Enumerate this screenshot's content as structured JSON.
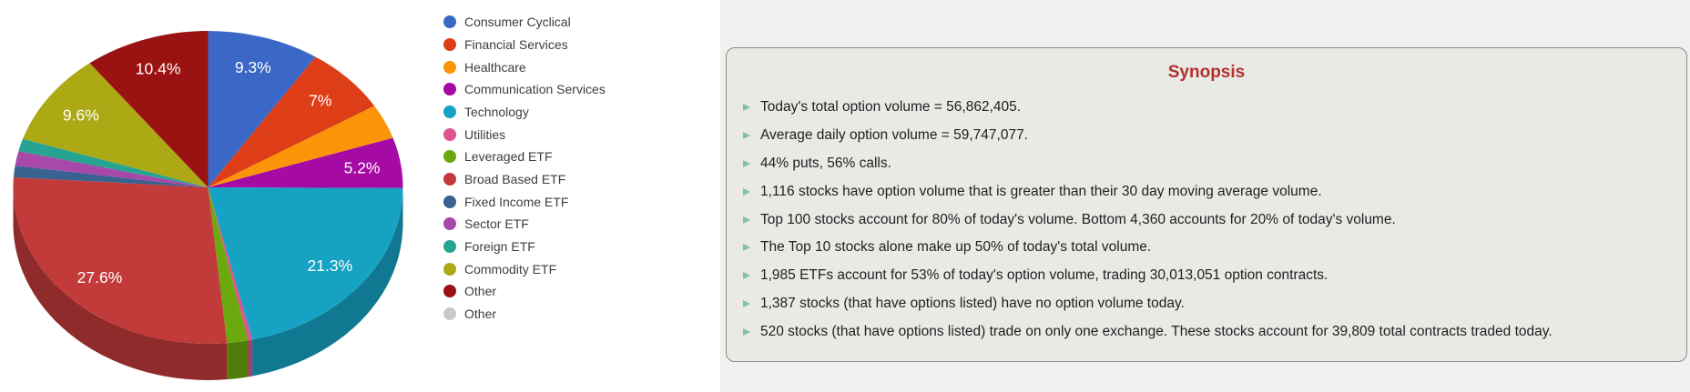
{
  "chart_data": {
    "type": "pie",
    "style": "3d",
    "legend_position": "right",
    "label_color": "#FFFFFF",
    "slices": [
      {
        "name": "Consumer Cyclical",
        "value": 9.3,
        "label": "9.3%",
        "color": "#3B68C6"
      },
      {
        "name": "Financial Services",
        "value": 7.0,
        "label": "7%",
        "color": "#DD3D17"
      },
      {
        "name": "Healthcare",
        "value": 3.6,
        "label": "",
        "color": "#FA9408"
      },
      {
        "name": "Communication Services",
        "value": 5.2,
        "label": "5.2%",
        "color": "#A50AA5"
      },
      {
        "name": "Technology",
        "value": 21.3,
        "label": "21.3%",
        "color": "#16A2C3"
      },
      {
        "name": "Utilities",
        "value": 0.35,
        "label": "",
        "color": "#DE5390"
      },
      {
        "name": "Leveraged ETF",
        "value": 1.75,
        "label": "",
        "color": "#6CA90E"
      },
      {
        "name": "Broad Based ETF",
        "value": 27.6,
        "label": "27.6%",
        "color": "#C23A3A"
      },
      {
        "name": "Fixed Income ETF",
        "value": 1.2,
        "label": "",
        "color": "#3A6290"
      },
      {
        "name": "Sector ETF",
        "value": 1.5,
        "label": "",
        "color": "#A848A8"
      },
      {
        "name": "Foreign ETF",
        "value": 1.3,
        "label": "",
        "color": "#26A491"
      },
      {
        "name": "Commodity ETF",
        "value": 9.6,
        "label": "9.6%",
        "color": "#ACA915"
      },
      {
        "name": "Other",
        "value": 10.4,
        "label": "10.4%",
        "color": "#9A1212"
      },
      {
        "name": "Other",
        "value": 0,
        "label": "",
        "color": "#C9C9C9"
      }
    ]
  },
  "synopsis": {
    "title": "Synopsis",
    "title_color": "#B3312B",
    "bullet_color": "#7CC49E",
    "items": [
      "Today's total option volume = 56,862,405.",
      "Average daily option volume = 59,747,077.",
      "44% puts, 56% calls.",
      "1,116 stocks have option volume that is greater than their 30 day moving average volume.",
      "Top 100 stocks account for 80% of today's volume. Bottom 4,360 accounts for 20% of today's volume.",
      "The Top 10 stocks alone make up 50% of today's total volume.",
      "1,985 ETFs account for 53% of today's option volume, trading 30,013,051 option contracts.",
      "1,387 stocks (that have options listed) have no option volume today.",
      "520 stocks (that have options listed) trade on only one exchange. These stocks account for 39,809 total contracts traded today."
    ]
  }
}
